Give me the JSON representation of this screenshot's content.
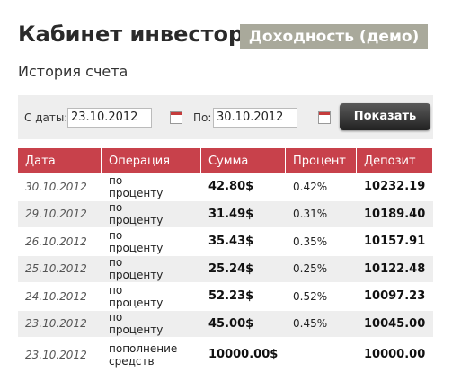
{
  "header": {
    "title": "Кабинет инвестора",
    "badge": "Доходность (демо)",
    "subtitle": "История счета"
  },
  "filter": {
    "from_label": "С даты:",
    "from_value": "23.10.2012",
    "to_label": "По:",
    "to_value": "30.10.2012",
    "button": "Показать"
  },
  "table": {
    "columns": [
      "Дата",
      "Операция",
      "Сумма",
      "Процент",
      "Депозит"
    ],
    "rows": [
      {
        "date": "30.10.2012",
        "operation": "по проценту",
        "amount": "42.80$",
        "percent": "0.42%",
        "deposit": "10232.19"
      },
      {
        "date": "29.10.2012",
        "operation": "по проценту",
        "amount": "31.49$",
        "percent": "0.31%",
        "deposit": "10189.40"
      },
      {
        "date": "26.10.2012",
        "operation": "по проценту",
        "amount": "35.43$",
        "percent": "0.35%",
        "deposit": "10157.91"
      },
      {
        "date": "25.10.2012",
        "operation": "по проценту",
        "amount": "25.24$",
        "percent": "0.25%",
        "deposit": "10122.48"
      },
      {
        "date": "24.10.2012",
        "operation": "по проценту",
        "amount": "52.23$",
        "percent": "0.52%",
        "deposit": "10097.23"
      },
      {
        "date": "23.10.2012",
        "operation": "по проценту",
        "amount": "45.00$",
        "percent": "0.45%",
        "deposit": "10045.00"
      },
      {
        "date": "23.10.2012",
        "operation": "пополнение средств",
        "amount": "10000.00$",
        "deposit": "10000.00"
      }
    ]
  }
}
